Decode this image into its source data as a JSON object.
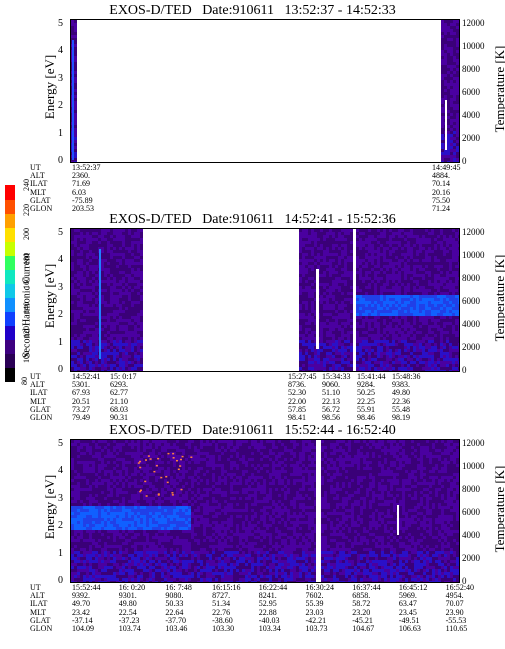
{
  "colorbar": {
    "label": "Second Harmonic Current",
    "ticks": [
      "80",
      "100",
      "120",
      "140",
      "160",
      "180",
      "200",
      "220",
      "240"
    ],
    "colors": [
      "#000000",
      "#2a0055",
      "#3d0080",
      "#2000c8",
      "#1040ff",
      "#1090ff",
      "#10c8e8",
      "#10e8c0",
      "#30ff60",
      "#c8ff00",
      "#ffe000",
      "#ffa000",
      "#ff5000",
      "#ff0000"
    ]
  },
  "panels": [
    {
      "title": "EXOS-D/TED   Date:910611   13:52:37 - 14:52:33",
      "ylabel": "Energy [eV]",
      "y2label": "Temperature [K]",
      "yticks": [
        "5",
        "4",
        "3",
        "2",
        "1",
        "0"
      ],
      "y2ticks": [
        "12000",
        "10000",
        "8000",
        "6000",
        "4000",
        "2000",
        "0"
      ],
      "ephem_labels": [
        "UT",
        "ALT",
        "ILAT",
        "MLT",
        "GLAT",
        "GLON"
      ],
      "ephem_cols": [
        [
          "13:52:37",
          "2360.",
          "71.69",
          "6.03",
          "-75.89",
          "203.53"
        ],
        [
          "14:49:45",
          "4884.",
          "70.14",
          "20.16",
          "75.50",
          "71.24"
        ]
      ]
    },
    {
      "title": "EXOS-D/TED   Date:910611   14:52:41 - 15:52:36",
      "ylabel": "Energy [eV]",
      "y2label": "Temperature [K]",
      "yticks": [
        "5",
        "4",
        "3",
        "2",
        "1",
        "0"
      ],
      "y2ticks": [
        "12000",
        "10000",
        "8000",
        "6000",
        "4000",
        "2000",
        "0"
      ],
      "ephem_labels": [
        "UT",
        "ALT",
        "ILAT",
        "MLT",
        "GLAT",
        "GLON"
      ],
      "ephem_cols": [
        [
          "14:52:41",
          "5301.",
          "67.93",
          "20.51",
          "73.27",
          "79.49"
        ],
        [
          "15: 0:17",
          "6293.",
          "62.77",
          "21.10",
          "68.03",
          "90.31"
        ],
        [
          "15:27:45",
          "8736.",
          "52.30",
          "22.00",
          "57.85",
          "98.41"
        ],
        [
          "15:34:33",
          "9060.",
          "51.10",
          "22.13",
          "56.72",
          "98.56"
        ],
        [
          "15:41:44",
          "9284.",
          "50.25",
          "22.25",
          "55.91",
          "98.46"
        ],
        [
          "15:48:36",
          "9383.",
          "49.80",
          "22.36",
          "55.48",
          "98.19"
        ]
      ]
    },
    {
      "title": "EXOS-D/TED   Date:910611   15:52:44 - 16:52:40",
      "ylabel": "Energy [eV]",
      "y2label": "Temperature [K]",
      "yticks": [
        "5",
        "4",
        "3",
        "2",
        "1",
        "0"
      ],
      "y2ticks": [
        "12000",
        "10000",
        "8000",
        "6000",
        "4000",
        "2000",
        "0"
      ],
      "ephem_labels": [
        "UT",
        "ALT",
        "ILAT",
        "MLT",
        "GLAT",
        "GLON"
      ],
      "ephem_cols": [
        [
          "15:52:44",
          "9392.",
          "49.70",
          "23.42",
          "-37.14",
          "104.09"
        ],
        [
          "16: 0:20",
          "9301.",
          "49.80",
          "22.54",
          "-37.23",
          "103.74"
        ],
        [
          "16: 7:48",
          "9080.",
          "50.33",
          "22.64",
          "-37.70",
          "103.46"
        ],
        [
          "16:15:16",
          "8727.",
          "51.34",
          "22.76",
          "-38.60",
          "103.30"
        ],
        [
          "16:22:44",
          "8241.",
          "52.95",
          "22.88",
          "-40.03",
          "103.34"
        ],
        [
          "16:30:24",
          "7602.",
          "55.39",
          "23.03",
          "-42.21",
          "103.73"
        ],
        [
          "16:37:44",
          "6858.",
          "58.72",
          "23.20",
          "-45.21",
          "104.67"
        ],
        [
          "16:45:12",
          "5969.",
          "63.47",
          "23.45",
          "-49.51",
          "106.63"
        ],
        [
          "16:52:40",
          "4954.",
          "70.07",
          "23.90",
          "-55.53",
          "110.65"
        ]
      ]
    }
  ],
  "chart_data": [
    {
      "type": "heatmap",
      "title": "EXOS-D/TED   Date:910611   13:52:37 - 14:52:33",
      "ylabel": "Energy [eV]",
      "y2label": "Temperature [K]",
      "ylim": [
        0,
        5
      ],
      "y2lim": [
        0,
        12000
      ],
      "x_tick_labels": [
        "13:52:37",
        "14:49:45"
      ],
      "data_segments_ut": [
        [
          "13:52:37",
          "13:53:20"
        ],
        [
          "14:48:30",
          "14:52:33"
        ]
      ],
      "grid": false
    },
    {
      "type": "heatmap",
      "title": "EXOS-D/TED   Date:910611   14:52:41 - 15:52:36",
      "ylabel": "Energy [eV]",
      "y2label": "Temperature [K]",
      "ylim": [
        0,
        5
      ],
      "y2lim": [
        0,
        12000
      ],
      "x_tick_labels": [
        "14:52:41",
        "15: 0:17",
        "15:27:45",
        "15:34:33",
        "15:41:44",
        "15:48:36"
      ],
      "data_segments_ut": [
        [
          "14:52:41",
          "15:4:00"
        ],
        [
          "15:26:00",
          "15:52:36"
        ]
      ],
      "band_energy_ev": [
        2.2,
        2.8
      ],
      "grid": false
    },
    {
      "type": "heatmap",
      "title": "EXOS-D/TED   Date:910611   15:52:44 - 16:52:40",
      "ylabel": "Energy [eV]",
      "y2label": "Temperature [K]",
      "ylim": [
        0,
        5
      ],
      "y2lim": [
        0,
        12000
      ],
      "x_tick_labels": [
        "15:52:44",
        "16: 0:20",
        "16: 7:48",
        "16:15:16",
        "16:22:44",
        "16:30:24",
        "16:37:44",
        "16:45:12",
        "16:52:40"
      ],
      "data_segments_ut": [
        [
          "15:52:44",
          "16:30:00"
        ],
        [
          "16:31:00",
          "16:52:40"
        ]
      ],
      "band_energy_ev": [
        2.0,
        2.8
      ],
      "grid": false
    }
  ]
}
